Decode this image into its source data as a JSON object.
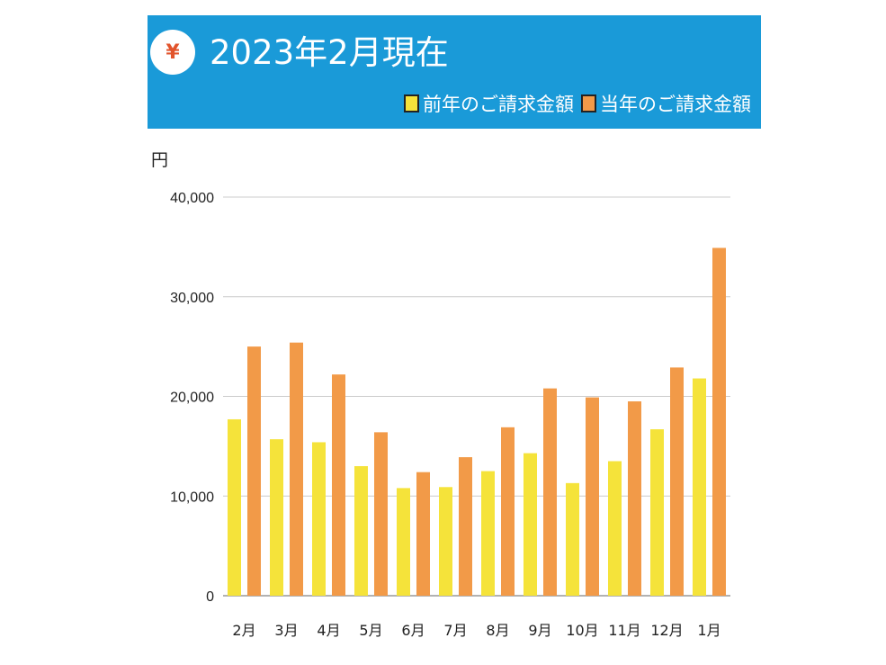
{
  "header": {
    "icon": "yen-icon",
    "icon_glyph": "¥",
    "title": "2023年2月現在",
    "background": "#1a9ad8"
  },
  "chart_data": {
    "type": "bar",
    "unit_label": "円",
    "categories": [
      "2月",
      "3月",
      "4月",
      "5月",
      "6月",
      "7月",
      "8月",
      "9月",
      "10月",
      "11月",
      "12月",
      "1月"
    ],
    "series": [
      {
        "name": "前年のご請求金額",
        "color": "#f5e33a",
        "values": [
          17700,
          15700,
          15400,
          13000,
          10800,
          10900,
          12500,
          14300,
          11300,
          13500,
          16700,
          21800
        ]
      },
      {
        "name": "当年のご請求金額",
        "color": "#f29a48",
        "values": [
          25000,
          25400,
          22200,
          16400,
          12400,
          13900,
          16900,
          20800,
          19900,
          19500,
          22900,
          34900
        ]
      }
    ],
    "ylim": [
      0,
      40000
    ],
    "yticks": [
      "0",
      "10,000",
      "20,000",
      "30,000",
      "40,000"
    ],
    "ytick_values": [
      0,
      10000,
      20000,
      30000,
      40000
    ],
    "grid": true,
    "legend": "top-right"
  }
}
